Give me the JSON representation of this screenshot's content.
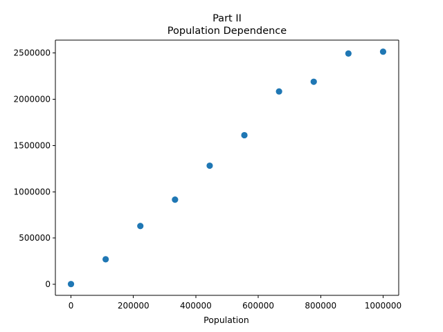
{
  "chart_data": {
    "type": "scatter",
    "title": "Part II",
    "subtitle": "Population Dependence",
    "xlabel": "Population",
    "ylabel": "",
    "xlim": [
      -50000,
      1050000
    ],
    "ylim": [
      -120000,
      2640000
    ],
    "x_ticks": [
      0,
      200000,
      400000,
      600000,
      800000,
      1000000
    ],
    "x_tick_labels": [
      "0",
      "200000",
      "400000",
      "600000",
      "800000",
      "1000000"
    ],
    "y_ticks": [
      0,
      500000,
      1000000,
      1500000,
      2000000,
      2500000
    ],
    "y_tick_labels": [
      "0",
      "500000",
      "1000000",
      "1500000",
      "2000000",
      "2500000"
    ],
    "grid": false,
    "legend": false,
    "series": [
      {
        "color": "#1f77b4",
        "x": [
          0,
          111111,
          222222,
          333333,
          444444,
          555556,
          666667,
          777778,
          888889,
          1000000
        ],
        "y": [
          2000,
          270000,
          630000,
          915000,
          1282000,
          1612000,
          2085000,
          2190000,
          2495000,
          2515000
        ]
      }
    ]
  }
}
